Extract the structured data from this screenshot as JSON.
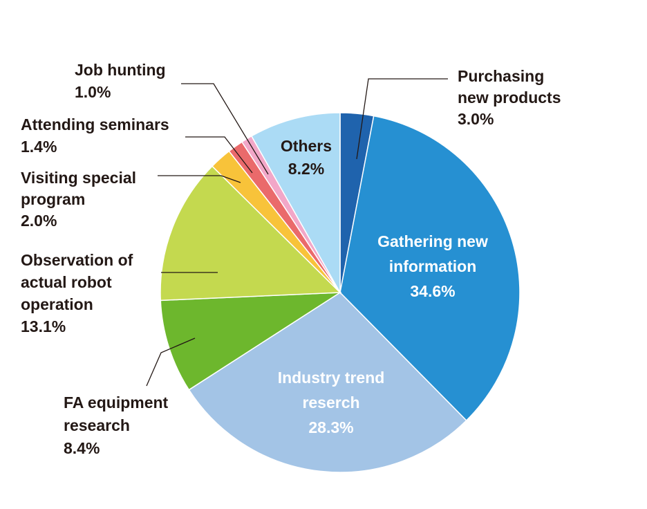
{
  "chart_data": {
    "type": "pie",
    "start_angle_deg": 0,
    "direction": "clockwise",
    "slices": [
      {
        "key": "purchasing",
        "label_lines": [
          "Purchasing",
          "new products"
        ],
        "value": 3.0,
        "value_label": "3.0%",
        "color": "#1f63ad",
        "label_placement": "outside"
      },
      {
        "key": "gathering",
        "label_lines": [
          "Gathering new",
          "information"
        ],
        "value": 34.6,
        "value_label": "34.6%",
        "color": "#2690d2",
        "label_placement": "inside"
      },
      {
        "key": "industry",
        "label_lines": [
          "Industry trend",
          "reserch"
        ],
        "value": 28.3,
        "value_label": "28.3%",
        "color": "#a3c4e6",
        "label_placement": "inside"
      },
      {
        "key": "fa",
        "label_lines": [
          "FA equipment",
          "research"
        ],
        "value": 8.4,
        "value_label": "8.4%",
        "color": "#6db72d",
        "label_placement": "outside"
      },
      {
        "key": "observation",
        "label_lines": [
          "Observation of",
          "actual robot",
          "operation"
        ],
        "value": 13.1,
        "value_label": "13.1%",
        "color": "#c4d94f",
        "label_placement": "outside"
      },
      {
        "key": "visiting",
        "label_lines": [
          "Visiting special",
          "program"
        ],
        "value": 2.0,
        "value_label": "2.0%",
        "color": "#f8c33a",
        "label_placement": "outside"
      },
      {
        "key": "seminars",
        "label_lines": [
          "Attending seminars"
        ],
        "value": 1.4,
        "value_label": "1.4%",
        "color": "#ea6a6b",
        "label_placement": "outside"
      },
      {
        "key": "job",
        "label_lines": [
          "Job hunting"
        ],
        "value": 1.0,
        "value_label": "1.0%",
        "color": "#f2a7c8",
        "label_placement": "outside"
      },
      {
        "key": "others",
        "label_lines": [
          "Others"
        ],
        "value": 8.2,
        "value_label": "8.2%",
        "color": "#abdbf5",
        "label_placement": "inside"
      }
    ]
  }
}
